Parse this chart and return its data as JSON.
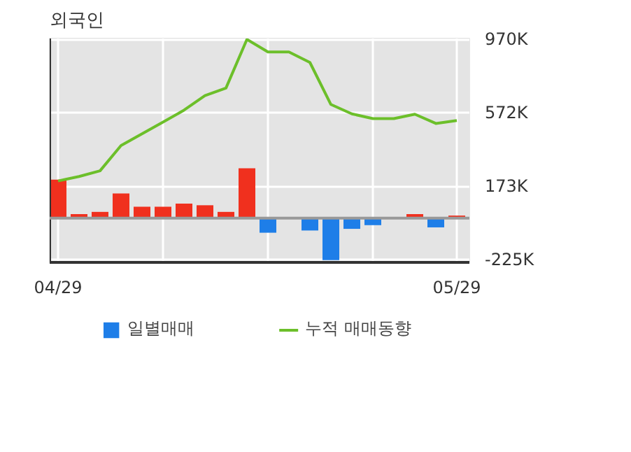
{
  "chart_data": {
    "type": "bar",
    "title": "외국인",
    "categories": [
      "04/29",
      null,
      null,
      null,
      null,
      null,
      null,
      null,
      null,
      null,
      null,
      null,
      null,
      null,
      null,
      null,
      null,
      null,
      null,
      "05/29"
    ],
    "series": [
      {
        "name": "일별매매",
        "colors": [
          "#f0301e",
          "#f0301e",
          "#f0301e",
          "#f0301e",
          "#f0301e",
          "#f0301e",
          "#f0301e",
          "#f0301e",
          "#f0301e",
          "#f0301e",
          "#1e7ee8",
          "#1e7ee8",
          "#1e7ee8",
          "#1e7ee8",
          "#1e7ee8",
          "#1e7ee8",
          "#1e7ee8",
          "#f0301e",
          "#1e7ee8",
          "#f0301e"
        ],
        "values": [
          209000,
          22000,
          34000,
          134000,
          62000,
          62000,
          79000,
          70000,
          34000,
          271000,
          -79000,
          0,
          -67000,
          -228000,
          -58000,
          -38000,
          0,
          22000,
          -50000,
          14000
        ]
      },
      {
        "name": "누적 매매동향",
        "type": "line",
        "color": "#6cbf2a",
        "values": [
          202000,
          226000,
          257000,
          394000,
          458000,
          521000,
          586000,
          665000,
          706000,
          970000,
          902000,
          902000,
          845000,
          617000,
          566000,
          540000,
          540000,
          564000,
          514000,
          530000
        ]
      }
    ],
    "ylim": [
      -240000,
      975000
    ],
    "yticks": [
      {
        "value": 970000,
        "label": "970K"
      },
      {
        "value": 572000,
        "label": "572K"
      },
      {
        "value": 173000,
        "label": "173K"
      },
      {
        "value": -225000,
        "label": "-225K"
      }
    ],
    "grid": true,
    "legend": "bottom"
  }
}
